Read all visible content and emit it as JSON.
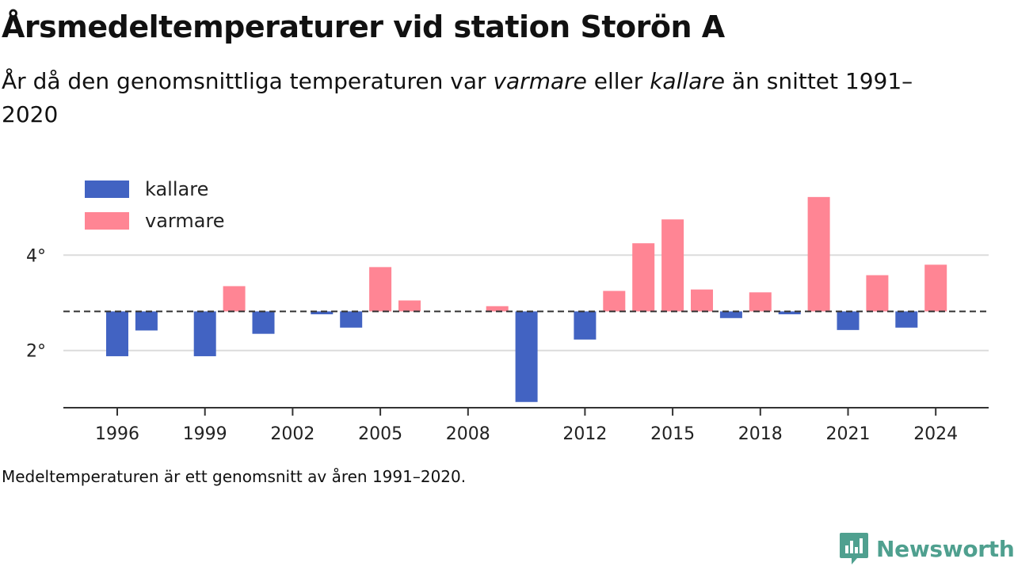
{
  "title": "Årsmedeltemperaturer vid station Storön A",
  "subtitle": {
    "part1": "År då den genomsnittliga temperaturen var ",
    "warmer": "varmare",
    "part2": " eller ",
    "colder": "kallare",
    "part3": " än snittet 1991–2020"
  },
  "note": "Medeltemperaturen är ett genomsnitt av åren 1991–2020.",
  "brand": {
    "name": "Newsworthy",
    "icon": "newsworthy-logo-icon",
    "color": "#4fa08f"
  },
  "chart_data": {
    "type": "bar",
    "baseline": 2.82,
    "baseline_style": "dashed",
    "colors": {
      "kallare": "#4263c2",
      "varmare": "#ff8594"
    },
    "legend": [
      {
        "key": "kallare",
        "label": "kallare"
      },
      {
        "key": "varmare",
        "label": "varmare"
      }
    ],
    "legend_position": "top-left",
    "x": [
      1996,
      1997,
      1998,
      1999,
      2000,
      2001,
      2002,
      2003,
      2004,
      2005,
      2006,
      2007,
      2008,
      2009,
      2010,
      2011,
      2012,
      2013,
      2014,
      2015,
      2016,
      2017,
      2018,
      2019,
      2020,
      2021,
      2022,
      2023,
      2024
    ],
    "values": [
      1.88,
      2.42,
      null,
      1.88,
      3.35,
      2.35,
      null,
      2.76,
      2.48,
      3.75,
      3.05,
      null,
      null,
      2.93,
      0.92,
      null,
      2.23,
      3.25,
      4.25,
      4.75,
      3.28,
      2.68,
      3.22,
      2.76,
      5.22,
      2.43,
      3.58,
      2.48,
      3.8
    ],
    "x_ticks": [
      1996,
      1999,
      2002,
      2005,
      2008,
      2012,
      2015,
      2018,
      2021,
      2024
    ],
    "x_tick_labels": [
      "1996",
      "1999",
      "2002",
      "2005",
      "2008",
      "2012",
      "2015",
      "2018",
      "2021",
      "2024"
    ],
    "y_ticks": [
      2,
      4
    ],
    "y_tick_labels": [
      "2°",
      "4°"
    ],
    "ylim": [
      0.8,
      5.45
    ],
    "grid": true
  }
}
